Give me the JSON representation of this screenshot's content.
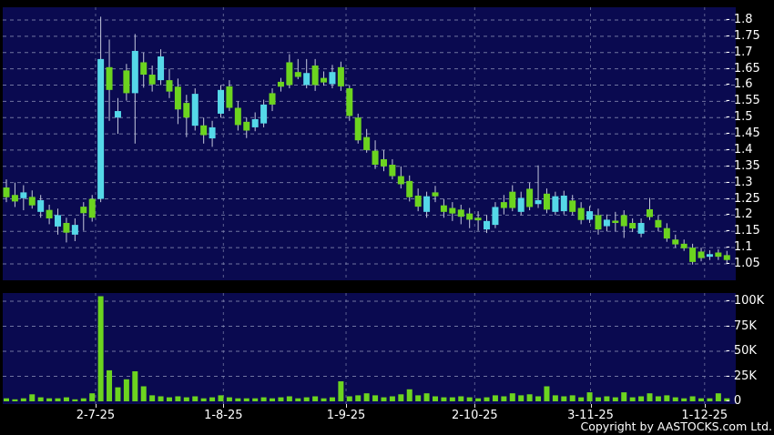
{
  "footer": {
    "copyright": "Copyright by AASTOCKS.com Ltd."
  },
  "colors": {
    "background": "#000000",
    "pane_background": "#0A0A50",
    "grid": "#9298BC",
    "wick": "#C4C8DC",
    "candle_green": "#6CD41F",
    "candle_cyan": "#55D8E8",
    "volume_bar": "#6CD41F",
    "axis_text": "#FFFFFF"
  },
  "chart_data": {
    "type": "candlestick-with-volume",
    "title": "",
    "price_axis": {
      "min": 1.05,
      "max": 1.8,
      "step": 0.05,
      "labels": [
        "1.8",
        "1.75",
        "1.7",
        "1.65",
        "1.6",
        "1.55",
        "1.5",
        "1.45",
        "1.4",
        "1.35",
        "1.3",
        "1.25",
        "1.2",
        "1.15",
        "1.1",
        "1.05"
      ]
    },
    "volume_axis": {
      "unit": "K",
      "ticks": [
        100,
        75,
        50,
        25,
        0
      ],
      "labels": [
        "100K",
        "75K",
        "50K",
        "25K",
        "0"
      ]
    },
    "x_axis": {
      "labels": [
        {
          "label": "2-7-25",
          "i": 10.4
        },
        {
          "label": "1-8-25",
          "i": 25.3
        },
        {
          "label": "1-9-25",
          "i": 39.6
        },
        {
          "label": "2-10-25",
          "i": 54.6
        },
        {
          "label": "3-11-25",
          "i": 68.1
        },
        {
          "label": "1-12-25",
          "i": 81.4
        }
      ]
    },
    "candles_key": [
      "color g=green c=cyan",
      "body_top",
      "body_bottom",
      "high",
      "low",
      "volume_K"
    ],
    "candles": [
      [
        "g",
        1.285,
        1.255,
        1.31,
        1.24,
        3
      ],
      [
        "g",
        1.262,
        1.242,
        1.3,
        1.225,
        2
      ],
      [
        "c",
        1.27,
        1.252,
        1.292,
        1.215,
        3
      ],
      [
        "g",
        1.256,
        1.23,
        1.276,
        1.22,
        7
      ],
      [
        "c",
        1.246,
        1.21,
        1.262,
        1.192,
        4
      ],
      [
        "g",
        1.216,
        1.19,
        1.232,
        1.172,
        3
      ],
      [
        "c",
        1.2,
        1.165,
        1.22,
        1.14,
        3
      ],
      [
        "g",
        1.176,
        1.146,
        1.192,
        1.116,
        4
      ],
      [
        "c",
        1.17,
        1.14,
        1.19,
        1.12,
        2
      ],
      [
        "g",
        1.226,
        1.206,
        1.24,
        1.152,
        3
      ],
      [
        "g",
        1.25,
        1.192,
        1.262,
        1.18,
        8
      ],
      [
        "c",
        1.68,
        1.25,
        1.81,
        1.24,
        105
      ],
      [
        "g",
        1.655,
        1.585,
        1.74,
        1.49,
        31
      ],
      [
        "c",
        1.52,
        1.5,
        1.56,
        1.45,
        14
      ],
      [
        "g",
        1.645,
        1.575,
        1.665,
        1.552,
        22
      ],
      [
        "c",
        1.705,
        1.575,
        1.757,
        1.42,
        30
      ],
      [
        "g",
        1.67,
        1.632,
        1.7,
        1.592,
        15
      ],
      [
        "g",
        1.632,
        1.602,
        1.66,
        1.58,
        6
      ],
      [
        "c",
        1.688,
        1.615,
        1.71,
        1.6,
        5
      ],
      [
        "g",
        1.615,
        1.58,
        1.65,
        1.56,
        4
      ],
      [
        "g",
        1.595,
        1.525,
        1.62,
        1.48,
        5
      ],
      [
        "g",
        1.545,
        1.5,
        1.57,
        1.44,
        4
      ],
      [
        "c",
        1.573,
        1.475,
        1.59,
        1.46,
        5
      ],
      [
        "g",
        1.476,
        1.446,
        1.5,
        1.42,
        3
      ],
      [
        "c",
        1.47,
        1.436,
        1.49,
        1.41,
        4
      ],
      [
        "c",
        1.585,
        1.512,
        1.6,
        1.5,
        6
      ],
      [
        "g",
        1.596,
        1.53,
        1.615,
        1.52,
        4
      ],
      [
        "g",
        1.53,
        1.477,
        1.55,
        1.46,
        3
      ],
      [
        "g",
        1.487,
        1.46,
        1.5,
        1.437,
        3
      ],
      [
        "c",
        1.495,
        1.47,
        1.516,
        1.458,
        3
      ],
      [
        "c",
        1.54,
        1.482,
        1.555,
        1.47,
        4
      ],
      [
        "g",
        1.575,
        1.54,
        1.59,
        1.52,
        3
      ],
      [
        "g",
        1.61,
        1.595,
        1.622,
        1.58,
        4
      ],
      [
        "g",
        1.67,
        1.6,
        1.695,
        1.59,
        5
      ],
      [
        "g",
        1.64,
        1.625,
        1.68,
        1.618,
        3
      ],
      [
        "c",
        1.637,
        1.6,
        1.68,
        1.59,
        4
      ],
      [
        "g",
        1.66,
        1.6,
        1.68,
        1.582,
        5
      ],
      [
        "g",
        1.622,
        1.608,
        1.642,
        1.598,
        3
      ],
      [
        "c",
        1.64,
        1.603,
        1.662,
        1.59,
        4
      ],
      [
        "g",
        1.655,
        1.596,
        1.672,
        1.582,
        20
      ],
      [
        "g",
        1.59,
        1.505,
        1.6,
        1.49,
        5
      ],
      [
        "g",
        1.5,
        1.43,
        1.512,
        1.42,
        6
      ],
      [
        "g",
        1.44,
        1.4,
        1.465,
        1.392,
        8
      ],
      [
        "g",
        1.398,
        1.355,
        1.43,
        1.342,
        6
      ],
      [
        "g",
        1.372,
        1.35,
        1.4,
        1.335,
        4
      ],
      [
        "g",
        1.355,
        1.32,
        1.372,
        1.31,
        5
      ],
      [
        "g",
        1.32,
        1.295,
        1.35,
        1.282,
        7
      ],
      [
        "g",
        1.305,
        1.255,
        1.322,
        1.242,
        12
      ],
      [
        "g",
        1.26,
        1.226,
        1.282,
        1.212,
        6
      ],
      [
        "c",
        1.258,
        1.21,
        1.272,
        1.192,
        8
      ],
      [
        "g",
        1.27,
        1.258,
        1.29,
        1.24,
        5
      ],
      [
        "g",
        1.23,
        1.21,
        1.25,
        1.192,
        4
      ],
      [
        "g",
        1.222,
        1.205,
        1.24,
        1.182,
        4
      ],
      [
        "g",
        1.217,
        1.195,
        1.232,
        1.172,
        5
      ],
      [
        "g",
        1.205,
        1.186,
        1.222,
        1.16,
        4
      ],
      [
        "g",
        1.192,
        1.184,
        1.212,
        1.152,
        3
      ],
      [
        "c",
        1.182,
        1.156,
        1.2,
        1.145,
        4
      ],
      [
        "c",
        1.225,
        1.17,
        1.24,
        1.16,
        6
      ],
      [
        "g",
        1.24,
        1.222,
        1.262,
        1.202,
        5
      ],
      [
        "g",
        1.272,
        1.222,
        1.292,
        1.212,
        8
      ],
      [
        "c",
        1.253,
        1.21,
        1.272,
        1.2,
        6
      ],
      [
        "g",
        1.281,
        1.225,
        1.3,
        1.215,
        7
      ],
      [
        "c",
        1.246,
        1.234,
        1.353,
        1.222,
        5
      ],
      [
        "g",
        1.266,
        1.217,
        1.282,
        1.206,
        15
      ],
      [
        "c",
        1.258,
        1.21,
        1.272,
        1.2,
        6
      ],
      [
        "c",
        1.26,
        1.212,
        1.275,
        1.202,
        5
      ],
      [
        "g",
        1.245,
        1.21,
        1.262,
        1.2,
        6
      ],
      [
        "g",
        1.222,
        1.185,
        1.24,
        1.172,
        4
      ],
      [
        "c",
        1.212,
        1.186,
        1.228,
        1.176,
        9
      ],
      [
        "g",
        1.2,
        1.156,
        1.22,
        1.14,
        4
      ],
      [
        "c",
        1.186,
        1.166,
        1.202,
        1.15,
        5
      ],
      [
        "g",
        1.183,
        1.176,
        1.21,
        1.15,
        4
      ],
      [
        "g",
        1.2,
        1.166,
        1.215,
        1.13,
        9
      ],
      [
        "g",
        1.176,
        1.159,
        1.19,
        1.148,
        4
      ],
      [
        "c",
        1.176,
        1.143,
        1.19,
        1.132,
        5
      ],
      [
        "g",
        1.218,
        1.194,
        1.253,
        1.185,
        8
      ],
      [
        "g",
        1.185,
        1.162,
        1.2,
        1.15,
        5
      ],
      [
        "g",
        1.16,
        1.128,
        1.175,
        1.118,
        6
      ],
      [
        "g",
        1.125,
        1.11,
        1.14,
        1.1,
        4
      ],
      [
        "g",
        1.112,
        1.098,
        1.125,
        1.09,
        3
      ],
      [
        "g",
        1.1,
        1.056,
        1.112,
        1.048,
        5
      ],
      [
        "g",
        1.088,
        1.068,
        1.1,
        1.058,
        3
      ],
      [
        "c",
        1.08,
        1.072,
        1.092,
        1.062,
        3
      ],
      [
        "g",
        1.085,
        1.072,
        1.095,
        1.062,
        8
      ],
      [
        "g",
        1.077,
        1.062,
        1.09,
        1.052,
        3
      ]
    ],
    "layout_hints": {
      "grid": "dashed",
      "price_labels_right": true,
      "panes": [
        "price",
        "volume"
      ]
    }
  }
}
